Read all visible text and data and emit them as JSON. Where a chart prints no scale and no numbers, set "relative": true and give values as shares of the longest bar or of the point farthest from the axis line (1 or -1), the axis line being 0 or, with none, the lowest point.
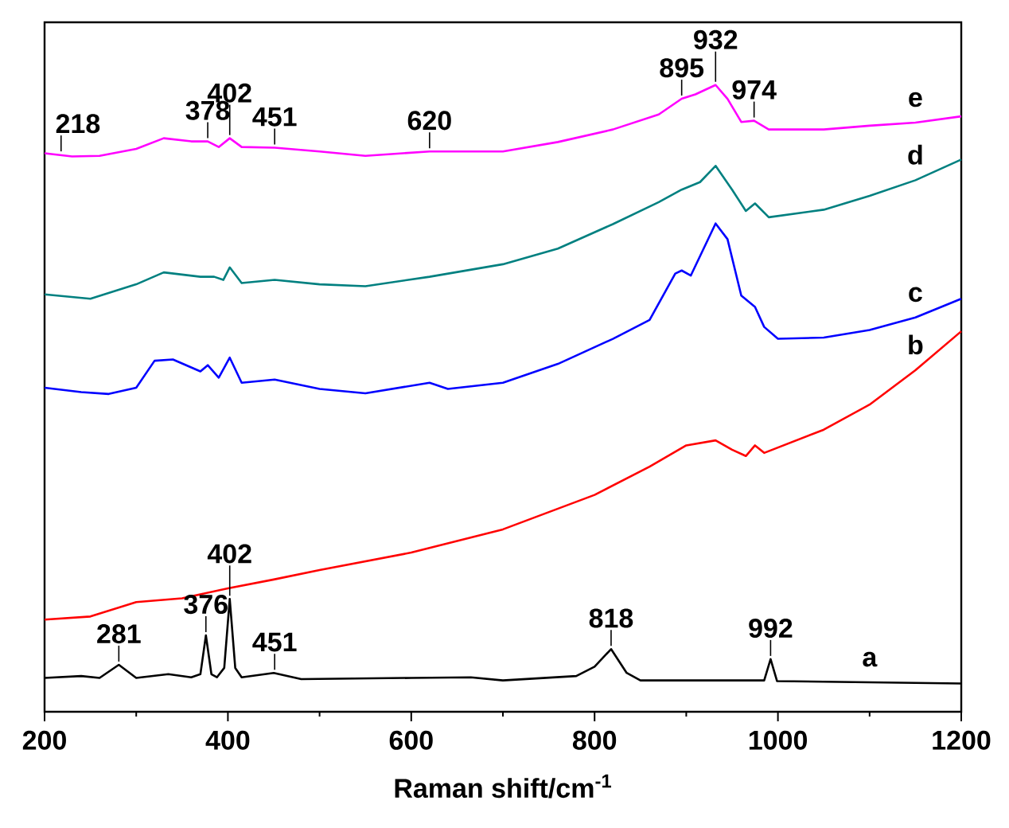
{
  "chart_data": {
    "type": "line",
    "relative": true,
    "xlabel": "Raman shift/cm$^{-1}$",
    "xlim": [
      200,
      1200
    ],
    "xticks": [
      200,
      400,
      600,
      800,
      1000,
      1200
    ],
    "tick_labels": "x",
    "grid": false,
    "legend": false,
    "marker": "none",
    "line_style": "solid",
    "series": [
      {
        "name": "a",
        "color": "#000000",
        "x": [
          200,
          240,
          260,
          281,
          300,
          335,
          360,
          370,
          376,
          382,
          388,
          396,
          402,
          408,
          415,
          450,
          480,
          600,
          665,
          700,
          780,
          800,
          818,
          835,
          850,
          985,
          992,
          999,
          1100,
          1200
        ],
        "values": [
          0.054,
          0.057,
          0.054,
          0.075,
          0.054,
          0.06,
          0.055,
          0.06,
          0.122,
          0.06,
          0.055,
          0.07,
          0.18,
          0.07,
          0.055,
          0.062,
          0.052,
          0.054,
          0.055,
          0.05,
          0.057,
          0.072,
          0.1,
          0.062,
          0.05,
          0.05,
          0.084,
          0.049,
          0.047,
          0.045
        ]
      },
      {
        "name": "b",
        "color": "#ff0000",
        "x": [
          200,
          250,
          300,
          350,
          400,
          450,
          500,
          600,
          700,
          800,
          860,
          900,
          932,
          950,
          965,
          975,
          985,
          1050,
          1100,
          1150,
          1200
        ],
        "values": [
          0.147,
          0.152,
          0.175,
          0.181,
          0.197,
          0.211,
          0.226,
          0.254,
          0.291,
          0.346,
          0.391,
          0.425,
          0.433,
          0.418,
          0.408,
          0.425,
          0.413,
          0.45,
          0.49,
          0.545,
          0.607
        ]
      },
      {
        "name": "c",
        "color": "#0000ff",
        "x": [
          200,
          240,
          270,
          300,
          320,
          340,
          370,
          378,
          390,
          402,
          415,
          451,
          500,
          550,
          620,
          640,
          700,
          760,
          820,
          860,
          888,
          895,
          905,
          932,
          945,
          960,
          975,
          985,
          1000,
          1050,
          1100,
          1150,
          1200
        ],
        "values": [
          0.517,
          0.51,
          0.507,
          0.517,
          0.56,
          0.562,
          0.543,
          0.553,
          0.533,
          0.565,
          0.525,
          0.53,
          0.515,
          0.508,
          0.525,
          0.515,
          0.525,
          0.555,
          0.595,
          0.625,
          0.699,
          0.704,
          0.696,
          0.779,
          0.754,
          0.664,
          0.646,
          0.614,
          0.595,
          0.597,
          0.609,
          0.629,
          0.659
        ]
      },
      {
        "name": "d",
        "color": "#008080",
        "x": [
          200,
          250,
          300,
          330,
          370,
          385,
          395,
          402,
          415,
          451,
          500,
          550,
          620,
          700,
          760,
          820,
          870,
          895,
          915,
          932,
          950,
          965,
          975,
          990,
          1050,
          1100,
          1150,
          1200
        ],
        "values": [
          0.666,
          0.659,
          0.682,
          0.701,
          0.694,
          0.694,
          0.689,
          0.709,
          0.684,
          0.689,
          0.682,
          0.679,
          0.694,
          0.714,
          0.739,
          0.778,
          0.813,
          0.833,
          0.845,
          0.871,
          0.833,
          0.799,
          0.811,
          0.789,
          0.801,
          0.823,
          0.848,
          0.881
        ]
      },
      {
        "name": "e",
        "color": "#ff00ff",
        "x": [
          200,
          230,
          260,
          300,
          330,
          360,
          378,
          390,
          402,
          415,
          451,
          500,
          550,
          620,
          700,
          760,
          820,
          870,
          895,
          910,
          932,
          945,
          960,
          974,
          990,
          1050,
          1100,
          1150,
          1200
        ],
        "values": [
          0.891,
          0.886,
          0.887,
          0.898,
          0.915,
          0.91,
          0.91,
          0.901,
          0.915,
          0.901,
          0.9,
          0.894,
          0.887,
          0.894,
          0.894,
          0.909,
          0.929,
          0.953,
          0.978,
          0.985,
          1.0,
          0.978,
          0.941,
          0.943,
          0.929,
          0.929,
          0.935,
          0.94,
          0.95
        ]
      }
    ],
    "annotations": [
      {
        "text": "281",
        "x": 281,
        "y": 0.075
      },
      {
        "text": "376",
        "x": 376,
        "y": 0.122
      },
      {
        "text": "402",
        "x": 402,
        "y": 0.18
      },
      {
        "text": "451",
        "x": 451,
        "y": 0.062
      },
      {
        "text": "818",
        "x": 818,
        "y": 0.1
      },
      {
        "text": "992",
        "x": 992,
        "y": 0.084
      },
      {
        "text": "218",
        "x": 218,
        "y": 0.889
      },
      {
        "text": "378",
        "x": 378,
        "y": 0.91
      },
      {
        "text": "402",
        "x": 402,
        "y": 0.915
      },
      {
        "text": "451",
        "x": 451,
        "y": 0.9
      },
      {
        "text": "620",
        "x": 620,
        "y": 0.894
      },
      {
        "text": "895",
        "x": 895,
        "y": 0.978
      },
      {
        "text": "932",
        "x": 932,
        "y": 1.0
      },
      {
        "text": "974",
        "x": 974,
        "y": 0.943
      }
    ]
  }
}
